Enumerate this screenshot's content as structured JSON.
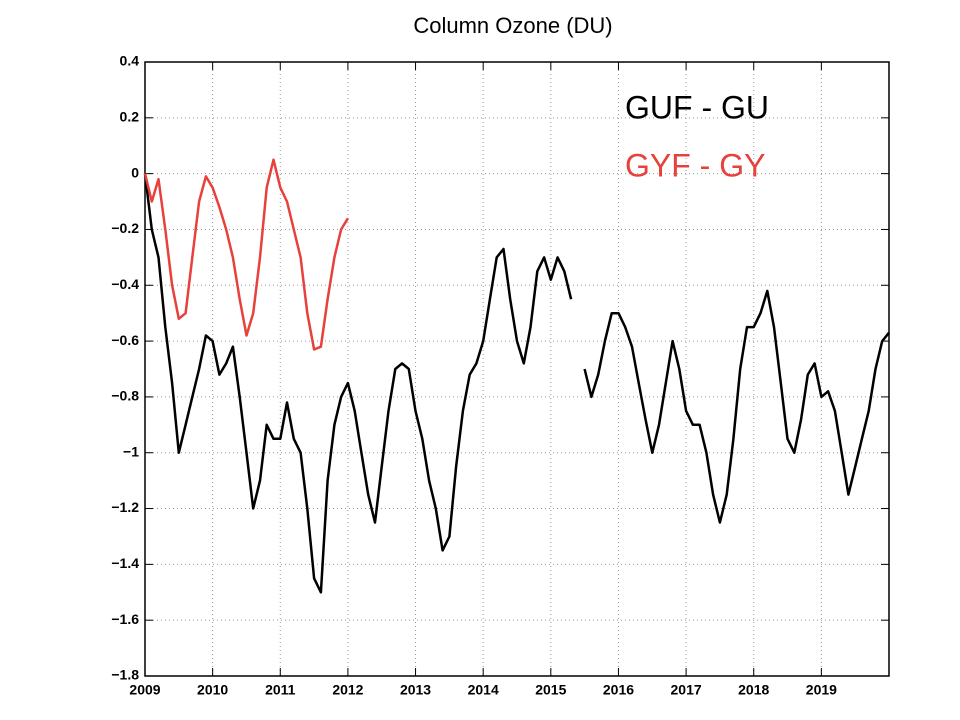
{
  "chart_data": {
    "type": "line",
    "title": "Column Ozone (DU)",
    "xlim": [
      2009,
      2020
    ],
    "xticks": [
      2009,
      2010,
      2011,
      2012,
      2013,
      2014,
      2015,
      2016,
      2017,
      2018,
      2019
    ],
    "ylim": [
      -1.8,
      0.4
    ],
    "yticks": [
      {
        "value": -1.8,
        "label": "−1.8"
      },
      {
        "value": -1.6,
        "label": "−1.6"
      },
      {
        "value": -1.4,
        "label": "−1.4"
      },
      {
        "value": -1.2,
        "label": "−1.2"
      },
      {
        "value": -1,
        "label": "−1"
      },
      {
        "value": -0.8,
        "label": "−0.8"
      },
      {
        "value": -0.6,
        "label": "−0.6"
      },
      {
        "value": -0.4,
        "label": "−0.4"
      },
      {
        "value": -0.2,
        "label": "−0.2"
      },
      0,
      0.2,
      0.4
    ],
    "grid": true,
    "series": [
      {
        "name": "GUF - GU",
        "color": "#000000",
        "x": [
          2009.0,
          2009.1,
          2009.2,
          2009.3,
          2009.4,
          2009.5,
          2009.6,
          2009.7,
          2009.8,
          2009.9,
          2010.0,
          2010.1,
          2010.2,
          2010.3,
          2010.4,
          2010.5,
          2010.6,
          2010.7,
          2010.8,
          2010.9,
          2011.0,
          2011.1,
          2011.2,
          2011.3,
          2011.4,
          2011.5,
          2011.6,
          2011.7,
          2011.8,
          2011.9,
          2012.0,
          2012.1,
          2012.2,
          2012.3,
          2012.4,
          2012.5,
          2012.6,
          2012.7,
          2012.8,
          2012.9,
          2013.0,
          2013.1,
          2013.2,
          2013.3,
          2013.4,
          2013.5,
          2013.6,
          2013.7,
          2013.8,
          2013.9,
          2014.0,
          2014.1,
          2014.2,
          2014.3,
          2014.4,
          2014.5,
          2014.6,
          2014.7,
          2014.8,
          2014.9,
          2015.0,
          2015.1,
          2015.2,
          2015.3,
          2015.4,
          2015.5,
          2015.6,
          2015.7,
          2015.8,
          2015.9,
          2016.0,
          2016.1,
          2016.2,
          2016.3,
          2016.4,
          2016.5,
          2016.6,
          2016.7,
          2016.8,
          2016.9,
          2017.0,
          2017.1,
          2017.2,
          2017.3,
          2017.4,
          2017.5,
          2017.6,
          2017.7,
          2017.8,
          2017.9,
          2018.0,
          2018.1,
          2018.2,
          2018.3,
          2018.4,
          2018.5,
          2018.6,
          2018.7,
          2018.8,
          2018.9,
          2019.0,
          2019.1,
          2019.2,
          2019.3,
          2019.4,
          2019.5,
          2019.6,
          2019.7,
          2019.8,
          2019.9,
          2020.0
        ],
        "values": [
          0.0,
          -0.2,
          -0.3,
          -0.55,
          -0.75,
          -1.0,
          -0.9,
          -0.8,
          -0.7,
          -0.58,
          -0.6,
          -0.72,
          -0.68,
          -0.62,
          -0.8,
          -1.0,
          -1.2,
          -1.1,
          -0.9,
          -0.95,
          -0.95,
          -0.82,
          -0.95,
          -1.0,
          -1.2,
          -1.45,
          -1.5,
          -1.1,
          -0.9,
          -0.8,
          -0.75,
          -0.85,
          -1.0,
          -1.15,
          -1.25,
          -1.05,
          -0.85,
          -0.7,
          -0.68,
          -0.7,
          -0.85,
          -0.95,
          -1.1,
          -1.2,
          -1.35,
          -1.3,
          -1.05,
          -0.85,
          -0.72,
          -0.68,
          -0.6,
          -0.45,
          -0.3,
          -0.27,
          -0.45,
          -0.6,
          -0.68,
          -0.55,
          -0.35,
          -0.3,
          -0.38,
          -0.3,
          -0.35,
          -0.45,
          null,
          -0.7,
          -0.8,
          -0.72,
          -0.6,
          -0.5,
          -0.5,
          -0.55,
          -0.62,
          -0.75,
          -0.88,
          -1.0,
          -0.9,
          -0.75,
          -0.6,
          -0.7,
          -0.85,
          -0.9,
          -0.9,
          -1.0,
          -1.15,
          -1.25,
          -1.15,
          -0.95,
          -0.7,
          -0.55,
          -0.55,
          -0.5,
          -0.42,
          -0.55,
          -0.75,
          -0.95,
          -1.0,
          -0.88,
          -0.72,
          -0.68,
          -0.8,
          -0.78,
          -0.85,
          -1.0,
          -1.15,
          -1.05,
          -0.95,
          -0.85,
          -0.7,
          -0.6,
          -0.57
        ]
      },
      {
        "name": "GYF - GY",
        "color": "#e8403a",
        "x": [
          2009.0,
          2009.1,
          2009.2,
          2009.3,
          2009.4,
          2009.5,
          2009.6,
          2009.7,
          2009.8,
          2009.9,
          2010.0,
          2010.1,
          2010.2,
          2010.3,
          2010.4,
          2010.5,
          2010.6,
          2010.7,
          2010.8,
          2010.9,
          2011.0,
          2011.1,
          2011.2,
          2011.3,
          2011.4,
          2011.5,
          2011.6,
          2011.7,
          2011.8,
          2011.9,
          2012.0
        ],
        "values": [
          0,
          -0.1,
          -0.02,
          -0.2,
          -0.4,
          -0.52,
          -0.5,
          -0.3,
          -0.1,
          -0.01,
          -0.05,
          -0.12,
          -0.2,
          -0.3,
          -0.45,
          -0.58,
          -0.5,
          -0.3,
          -0.05,
          0.05,
          -0.05,
          -0.1,
          -0.2,
          -0.3,
          -0.5,
          -0.63,
          -0.62,
          -0.45,
          -0.3,
          -0.2,
          -0.16
        ]
      }
    ]
  }
}
